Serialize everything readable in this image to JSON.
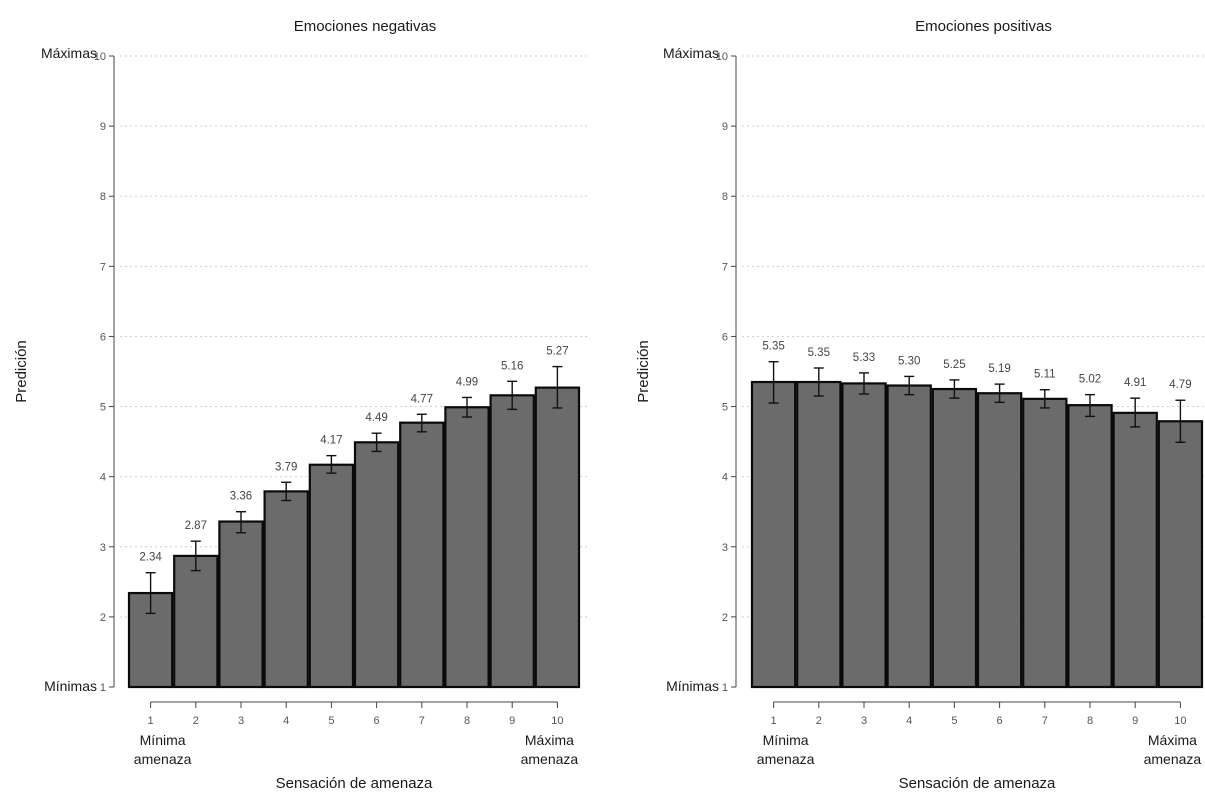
{
  "chart_data": [
    {
      "type": "bar",
      "title": "Emociones negativas",
      "xlabel": "Sensación de amenaza",
      "ylabel": "Predición",
      "ylim": [
        1,
        10
      ],
      "y_ticks": [
        1,
        2,
        3,
        4,
        5,
        6,
        7,
        8,
        9,
        10
      ],
      "y_top_label": "Máximas",
      "y_bottom_label": "Mínimas",
      "x_left_label": [
        "Mínima",
        "amenaza"
      ],
      "x_right_label": [
        "Máxima",
        "amenaza"
      ],
      "categories": [
        "1",
        "2",
        "3",
        "4",
        "5",
        "6",
        "7",
        "8",
        "9",
        "10"
      ],
      "values": [
        2.34,
        2.87,
        3.36,
        3.79,
        4.17,
        4.49,
        4.77,
        4.99,
        5.16,
        5.27
      ],
      "value_labels": [
        "2.34",
        "2.87",
        "3.36",
        "3.79",
        "4.17",
        "4.49",
        "4.77",
        "4.99",
        "5.16",
        "5.27"
      ],
      "ci_low": [
        2.05,
        2.66,
        3.2,
        3.66,
        4.05,
        4.36,
        4.64,
        4.85,
        4.96,
        4.98
      ],
      "ci_high": [
        2.63,
        3.08,
        3.5,
        3.92,
        4.3,
        4.62,
        4.89,
        5.13,
        5.36,
        5.57
      ],
      "grid": true
    },
    {
      "type": "bar",
      "title": "Emociones positivas",
      "xlabel": "Sensación de amenaza",
      "ylabel": "Predición",
      "ylim": [
        1,
        10
      ],
      "y_ticks": [
        1,
        2,
        3,
        4,
        5,
        6,
        7,
        8,
        9,
        10
      ],
      "y_top_label": "Máximas",
      "y_bottom_label": "Mínimas",
      "x_left_label": [
        "Mínima",
        "amenaza"
      ],
      "x_right_label": [
        "Máxima",
        "amenaza"
      ],
      "categories": [
        "1",
        "2",
        "3",
        "4",
        "5",
        "6",
        "7",
        "8",
        "9",
        "10"
      ],
      "values": [
        5.35,
        5.35,
        5.33,
        5.3,
        5.25,
        5.19,
        5.11,
        5.02,
        4.91,
        4.79
      ],
      "value_labels": [
        "5.35",
        "5.35",
        "5.33",
        "5.30",
        "5.25",
        "5.19",
        "5.11",
        "5.02",
        "4.91",
        "4.79"
      ],
      "ci_low": [
        5.05,
        5.15,
        5.18,
        5.17,
        5.12,
        5.06,
        4.98,
        4.86,
        4.71,
        4.49
      ],
      "ci_high": [
        5.64,
        5.55,
        5.48,
        5.43,
        5.38,
        5.32,
        5.24,
        5.17,
        5.12,
        5.09
      ],
      "grid": true
    }
  ]
}
